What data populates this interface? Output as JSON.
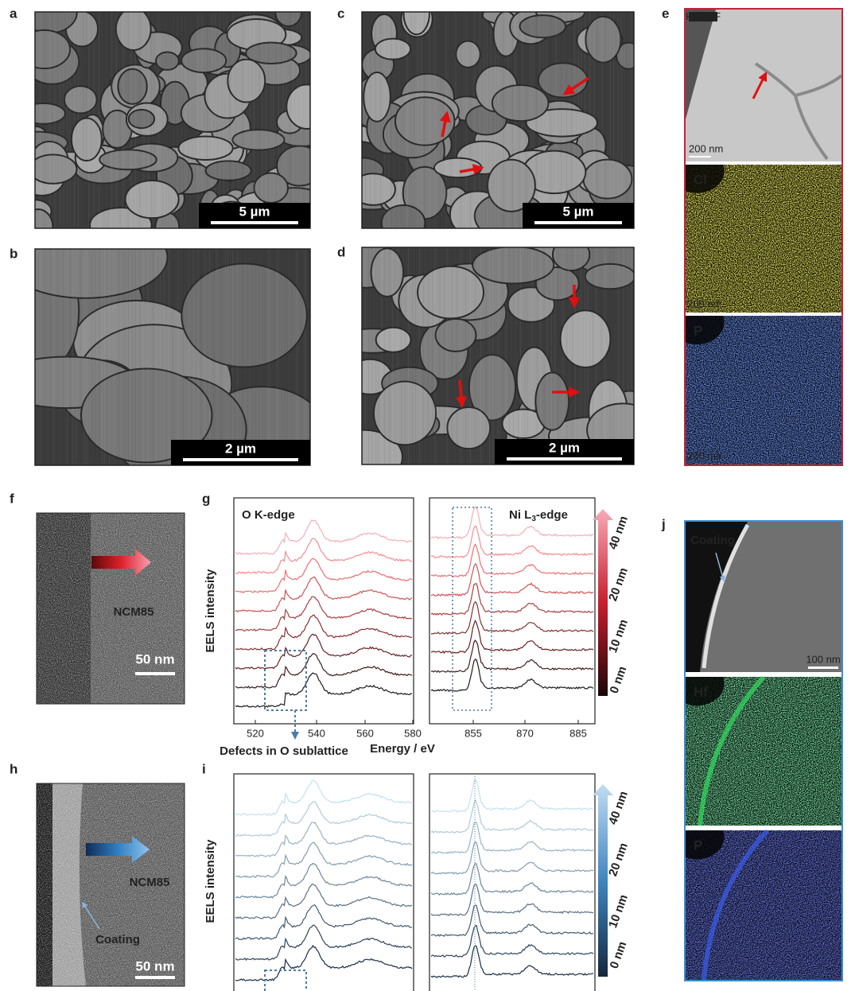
{
  "panels": {
    "a": {
      "label": "a",
      "scale_bar": "5 µm"
    },
    "b": {
      "label": "b",
      "scale_bar": "2 µm"
    },
    "c": {
      "label": "c",
      "scale_bar": "5 µm"
    },
    "d": {
      "label": "d",
      "scale_bar": "2 µm"
    },
    "e": {
      "label": "e",
      "haadf": "HAADF",
      "haadf_scale": "200 nm",
      "map1": "Cl",
      "map1_scale": "200 nm",
      "map2": "P",
      "map2_scale": "200 nm"
    },
    "f": {
      "label": "f",
      "material": "NCM85",
      "scale_bar": "50 nm"
    },
    "g": {
      "label": "g",
      "y_label": "EELS intensity",
      "left_title": "O K-edge",
      "right_title": {
        "prefix": "Ni L",
        "sub": "3",
        "suffix": "-edge"
      },
      "left_ticks": [
        "520",
        "540",
        "560",
        "580"
      ],
      "right_ticks": [
        "855",
        "870",
        "885"
      ],
      "x_label": "Energy / eV",
      "annotation": "Defects in O sublattice",
      "depths": [
        "40 nm",
        "20 nm",
        "10 nm",
        "0 nm"
      ]
    },
    "h": {
      "label": "h",
      "material": "NCM85",
      "coating": "Coating",
      "scale_bar": "50 nm"
    },
    "i": {
      "label": "i",
      "y_label": "EELS intensity",
      "depths": [
        "40 nm",
        "20 nm",
        "10 nm",
        "0 nm"
      ]
    },
    "j": {
      "label": "j",
      "coating": "Coating",
      "scale_bar": "100 nm",
      "map1": "Hf",
      "map2": "P"
    }
  }
}
